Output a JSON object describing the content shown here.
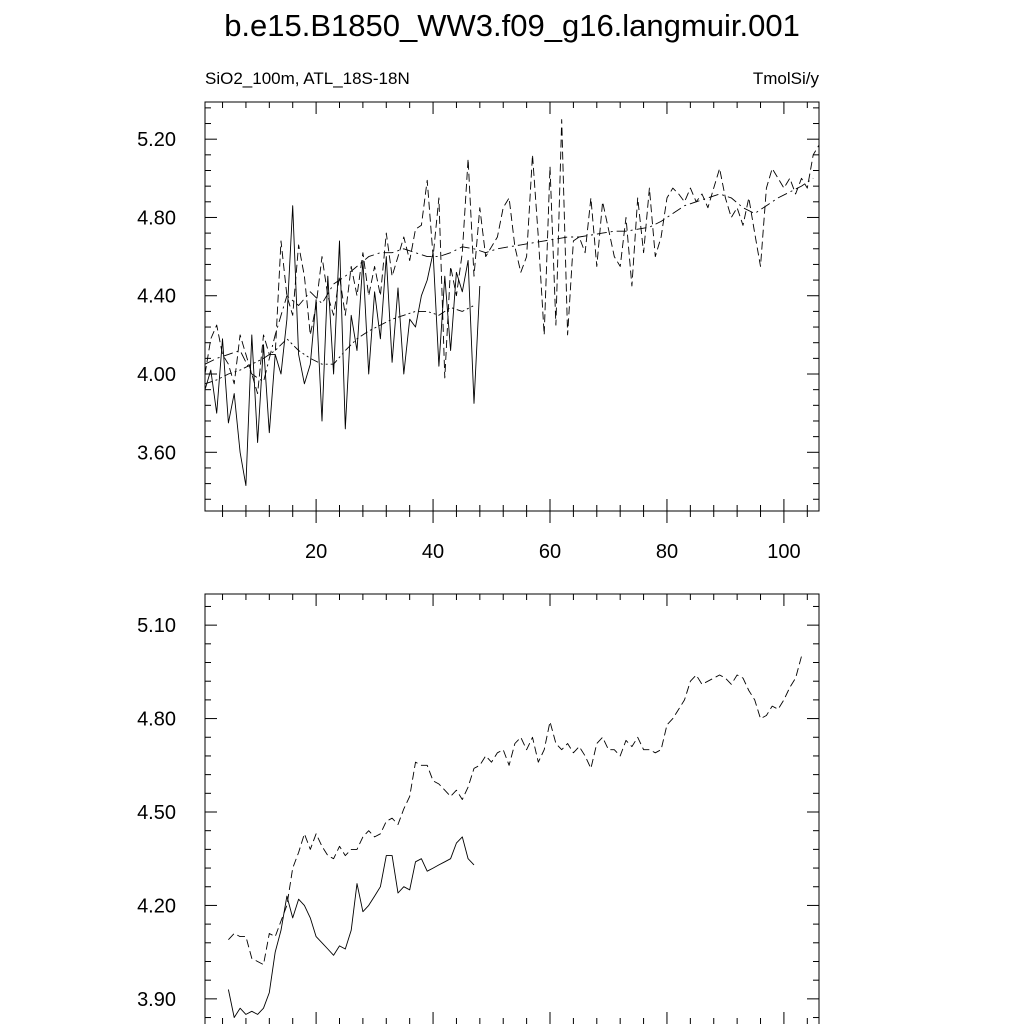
{
  "figure": {
    "title": "b.e15.B1850_WW3.f09_g16.langmuir.001",
    "subtitle_left": "SiO2_100m, ATL_18S-18N",
    "subtitle_right": "TmolSi/y"
  },
  "chart_data": [
    {
      "type": "line",
      "xlim": [
        1,
        106
      ],
      "ylim": [
        3.3,
        5.39
      ],
      "xticks": [
        20,
        40,
        60,
        80,
        100
      ],
      "xtick_labels": [
        "20",
        "40",
        "60",
        "80",
        "100"
      ],
      "yticks": [
        3.6,
        4.0,
        4.4,
        4.8,
        5.2
      ],
      "ytick_labels": [
        "3.60",
        "4.00",
        "4.40",
        "4.80",
        "5.20"
      ],
      "grid": false,
      "series": [
        {
          "style": "solid",
          "x": [
            1,
            2,
            3,
            4,
            5,
            6,
            7,
            8,
            9,
            10,
            11,
            12,
            13,
            14,
            15,
            16,
            17,
            18,
            19,
            20,
            21,
            22,
            23,
            24,
            25,
            26,
            27,
            28,
            29,
            30,
            31,
            32,
            33,
            34,
            35,
            36,
            37,
            38,
            39,
            40,
            41,
            42,
            43,
            44,
            45,
            46,
            47,
            48
          ],
          "y": [
            3.92,
            4.02,
            3.8,
            4.18,
            3.75,
            3.9,
            3.6,
            3.43,
            4.2,
            3.65,
            4.15,
            3.7,
            4.1,
            4.0,
            4.28,
            4.86,
            4.1,
            3.95,
            4.05,
            4.38,
            3.76,
            4.5,
            4.0,
            4.68,
            3.72,
            4.3,
            4.12,
            4.58,
            4.0,
            4.42,
            4.18,
            4.6,
            4.06,
            4.44,
            4.0,
            4.28,
            4.24,
            4.4,
            4.48,
            4.62,
            4.04,
            4.5,
            4.12,
            4.52,
            4.42,
            4.58,
            3.85,
            4.45
          ]
        },
        {
          "style": "dashed",
          "x": [
            1,
            2,
            3,
            4,
            5,
            6,
            7,
            8,
            9,
            10,
            11,
            12,
            13,
            14,
            15,
            16,
            17,
            18,
            19,
            20,
            21,
            22,
            23,
            24,
            25,
            26,
            27,
            28,
            29,
            30,
            31,
            32,
            33,
            34,
            35,
            36,
            37,
            38,
            39,
            40,
            41,
            42,
            43,
            44,
            45,
            46,
            47,
            48,
            49,
            50,
            51,
            52,
            53,
            54,
            55,
            56,
            57,
            58,
            59,
            60,
            61,
            62,
            63,
            64,
            65,
            66,
            67,
            68,
            69,
            70,
            71,
            72,
            73,
            74,
            75,
            76,
            77,
            78,
            79,
            80,
            81,
            82,
            83,
            84,
            85,
            86,
            87,
            88,
            89,
            90,
            91,
            92,
            93,
            94,
            95,
            96,
            97,
            98,
            99,
            100,
            101,
            102,
            103,
            104,
            105,
            106
          ],
          "y": [
            4.0,
            4.18,
            4.25,
            4.1,
            4.05,
            3.95,
            4.2,
            4.1,
            4.0,
            3.9,
            4.2,
            4.1,
            4.1,
            4.68,
            4.4,
            4.3,
            4.66,
            4.5,
            4.2,
            4.35,
            4.6,
            4.4,
            4.3,
            4.5,
            4.3,
            4.55,
            4.4,
            4.62,
            4.4,
            4.55,
            4.4,
            4.72,
            4.5,
            4.6,
            4.7,
            4.58,
            4.74,
            4.76,
            4.99,
            4.6,
            4.9,
            3.98,
            4.55,
            4.4,
            4.62,
            5.1,
            4.5,
            4.85,
            4.6,
            4.65,
            4.7,
            4.85,
            4.9,
            4.65,
            4.52,
            4.6,
            5.12,
            4.7,
            4.2,
            5.06,
            4.25,
            5.3,
            4.2,
            4.68,
            4.7,
            4.62,
            4.9,
            4.55,
            4.88,
            4.74,
            4.6,
            4.55,
            4.8,
            4.45,
            4.9,
            4.62,
            4.95,
            4.6,
            4.7,
            4.9,
            4.95,
            4.92,
            4.88,
            4.95,
            4.88,
            4.92,
            4.85,
            4.95,
            5.05,
            4.9,
            4.8,
            4.85,
            4.76,
            4.9,
            4.72,
            4.55,
            4.95,
            5.05,
            5.0,
            4.95,
            5.0,
            4.92,
            5.0,
            4.95,
            5.12,
            5.17
          ]
        },
        {
          "style": "dash-dot",
          "x": [
            1,
            3,
            5,
            7,
            9,
            11,
            13,
            15,
            17,
            19,
            21,
            23,
            25,
            27,
            29,
            31,
            33,
            35,
            37,
            39,
            41,
            43,
            45,
            47,
            49,
            51,
            53,
            55,
            57,
            59,
            61,
            63,
            65,
            67,
            69,
            71,
            73,
            75,
            77,
            79,
            81,
            83,
            85,
            87,
            89,
            91,
            93,
            95,
            97,
            99,
            101,
            103,
            105
          ],
          "y": [
            4.05,
            4.08,
            4.1,
            4.12,
            4.0,
            3.96,
            4.2,
            4.4,
            4.35,
            4.42,
            4.36,
            4.46,
            4.5,
            4.55,
            4.6,
            4.62,
            4.62,
            4.64,
            4.62,
            4.6,
            4.6,
            4.62,
            4.65,
            4.64,
            4.62,
            4.64,
            4.65,
            4.66,
            4.67,
            4.68,
            4.69,
            4.7,
            4.7,
            4.71,
            4.72,
            4.73,
            4.73,
            4.74,
            4.75,
            4.78,
            4.82,
            4.86,
            4.88,
            4.9,
            4.92,
            4.9,
            4.85,
            4.82,
            4.86,
            4.9,
            4.93,
            4.96,
            5.0
          ]
        },
        {
          "style": "dash-dot-dot",
          "x": [
            1,
            3,
            5,
            7,
            9,
            11,
            13,
            15,
            17,
            19,
            21,
            23,
            25,
            27,
            29,
            31,
            33,
            35,
            37,
            39,
            41,
            43,
            45,
            47
          ],
          "y": [
            3.95,
            3.97,
            4.0,
            4.02,
            4.05,
            4.08,
            4.12,
            4.18,
            4.12,
            4.08,
            4.05,
            4.05,
            4.12,
            4.18,
            4.22,
            4.25,
            4.28,
            4.3,
            4.32,
            4.32,
            4.3,
            4.34,
            4.32,
            4.35
          ]
        }
      ]
    },
    {
      "type": "line",
      "xlim": [
        1,
        106
      ],
      "ylim": [
        3.8,
        5.2
      ],
      "xticks": [
        20,
        40,
        60,
        80,
        100
      ],
      "yticks": [
        3.9,
        4.2,
        4.5,
        4.8,
        5.1
      ],
      "ytick_labels": [
        "3.90",
        "4.20",
        "4.50",
        "4.80",
        "5.10"
      ],
      "grid": false,
      "series": [
        {
          "style": "solid",
          "x": [
            5,
            6,
            7,
            8,
            9,
            10,
            11,
            12,
            13,
            14,
            15,
            16,
            17,
            18,
            19,
            20,
            21,
            22,
            23,
            24,
            25,
            26,
            27,
            28,
            29,
            30,
            31,
            32,
            33,
            34,
            35,
            36,
            37,
            38,
            39,
            40,
            41,
            42,
            43,
            44,
            45,
            46,
            47
          ],
          "y": [
            3.93,
            3.84,
            3.87,
            3.85,
            3.86,
            3.85,
            3.87,
            3.92,
            4.05,
            4.12,
            4.23,
            4.16,
            4.22,
            4.2,
            4.16,
            4.1,
            4.08,
            4.06,
            4.04,
            4.07,
            4.06,
            4.12,
            4.27,
            4.18,
            4.2,
            4.23,
            4.26,
            4.36,
            4.36,
            4.24,
            4.26,
            4.25,
            4.34,
            4.35,
            4.31,
            4.32,
            4.33,
            4.34,
            4.35,
            4.4,
            4.42,
            4.35,
            4.33
          ]
        },
        {
          "style": "dashed",
          "x": [
            5,
            6,
            7,
            8,
            9,
            10,
            11,
            12,
            13,
            14,
            15,
            16,
            17,
            18,
            19,
            20,
            21,
            22,
            23,
            24,
            25,
            26,
            27,
            28,
            29,
            30,
            31,
            32,
            33,
            34,
            35,
            36,
            37,
            38,
            39,
            40,
            41,
            42,
            43,
            44,
            45,
            46,
            47,
            48,
            49,
            50,
            51,
            52,
            53,
            54,
            55,
            56,
            57,
            58,
            59,
            60,
            61,
            62,
            63,
            64,
            65,
            66,
            67,
            68,
            69,
            70,
            71,
            72,
            73,
            74,
            75,
            76,
            77,
            78,
            79,
            80,
            81,
            82,
            83,
            84,
            85,
            86,
            87,
            88,
            89,
            90,
            91,
            92,
            93,
            94,
            95,
            96,
            97,
            98,
            99,
            100,
            101,
            102,
            103
          ],
          "y": [
            4.09,
            4.11,
            4.1,
            4.1,
            4.03,
            4.02,
            4.01,
            4.11,
            4.1,
            4.15,
            4.2,
            4.32,
            4.37,
            4.43,
            4.38,
            4.43,
            4.39,
            4.36,
            4.35,
            4.39,
            4.36,
            4.38,
            4.38,
            4.42,
            4.44,
            4.42,
            4.43,
            4.47,
            4.48,
            4.46,
            4.51,
            4.55,
            4.66,
            4.65,
            4.65,
            4.6,
            4.59,
            4.57,
            4.55,
            4.57,
            4.54,
            4.58,
            4.64,
            4.65,
            4.68,
            4.66,
            4.69,
            4.7,
            4.65,
            4.72,
            4.74,
            4.7,
            4.74,
            4.66,
            4.7,
            4.79,
            4.72,
            4.7,
            4.72,
            4.69,
            4.71,
            4.68,
            4.64,
            4.72,
            4.74,
            4.7,
            4.7,
            4.68,
            4.73,
            4.71,
            4.74,
            4.7,
            4.7,
            4.69,
            4.7,
            4.78,
            4.8,
            4.83,
            4.86,
            4.92,
            4.94,
            4.91,
            4.92,
            4.93,
            4.94,
            4.93,
            4.91,
            4.94,
            4.93,
            4.89,
            4.86,
            4.8,
            4.81,
            4.84,
            4.83,
            4.86,
            4.9,
            4.93,
            5.0
          ]
        }
      ]
    }
  ]
}
